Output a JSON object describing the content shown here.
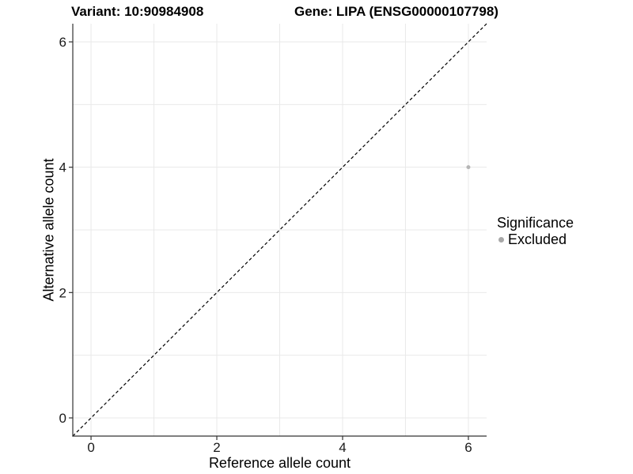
{
  "titles": {
    "left": "Variant: 10:90984908",
    "right": "Gene: LIPA (ENSG00000107798)"
  },
  "chart_data": {
    "type": "scatter",
    "title": "Variant: 10:90984908 — Gene: LIPA (ENSG00000107798)",
    "xlabel": "Reference allele count",
    "ylabel": "Alternative allele count",
    "xlim": [
      -0.29,
      6.29
    ],
    "ylim": [
      -0.29,
      6.29
    ],
    "xticks": [
      0,
      2,
      4,
      6
    ],
    "yticks": [
      0,
      2,
      4,
      6
    ],
    "grid_positions": [
      0,
      1,
      2,
      3,
      4,
      5,
      6
    ],
    "grid_on": true,
    "points": [
      {
        "x": 6,
        "y": 4,
        "series": "Excluded"
      }
    ],
    "point_radius": 2.5,
    "reference_line": {
      "type": "identity",
      "style": "dashed",
      "x1": -0.29,
      "y1": -0.29,
      "x2": 6.29,
      "y2": 6.29
    },
    "legend": {
      "title": "Significance",
      "position": "right",
      "items": [
        {
          "label": "Excluded",
          "color": "#a8a8a8"
        }
      ]
    },
    "colors": {
      "point": "#b5b5b5",
      "grid": "#e9e9e9",
      "axis": "#333333",
      "dash_line": "#000000",
      "tick_label": "#1a1a1a"
    }
  }
}
